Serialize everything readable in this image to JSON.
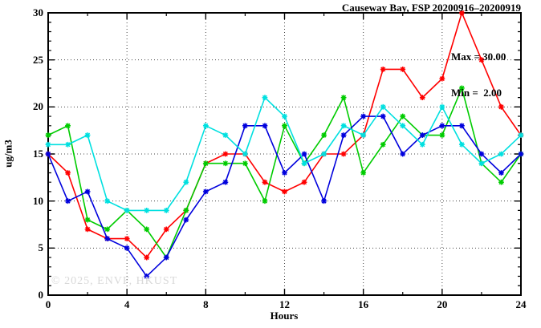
{
  "header": {
    "title": "Causeway Bay, FSP 20200916–20200919"
  },
  "annotation": {
    "max_label": "Max = 30.00",
    "min_label": "Min =  2.00"
  },
  "watermark": "© 2025, ENVF, HKUST",
  "axes": {
    "x_label": "Hours",
    "y_label": "ug/m3"
  },
  "chart_data": {
    "type": "line",
    "title": "Causeway Bay, FSP 20200916–20200919",
    "xlabel": "Hours",
    "ylabel": "ug/m3",
    "xlim": [
      0,
      24
    ],
    "ylim": [
      0,
      30
    ],
    "x_major_ticks": [
      0,
      4,
      8,
      12,
      16,
      20,
      24
    ],
    "x_minor_step": 2,
    "y_major_ticks": [
      0,
      5,
      10,
      15,
      20,
      25,
      30
    ],
    "y_minor_step": 1,
    "grid": "dotted-major",
    "legend_position": "none",
    "marker": "asterisk",
    "max_value": 30.0,
    "min_value": 2.0,
    "x": [
      0,
      1,
      2,
      3,
      4,
      5,
      6,
      7,
      8,
      9,
      10,
      11,
      12,
      13,
      14,
      15,
      16,
      17,
      18,
      19,
      20,
      21,
      22,
      23,
      24
    ],
    "series": [
      {
        "name": "series-red",
        "color": "#ff0000",
        "values": [
          15,
          13,
          7,
          6,
          6,
          4,
          7,
          9,
          14,
          15,
          15,
          12,
          11,
          12,
          15,
          15,
          17,
          24,
          24,
          21,
          23,
          30,
          25,
          20,
          17
        ]
      },
      {
        "name": "series-green",
        "color": "#00cc00",
        "values": [
          17,
          18,
          8,
          7,
          9,
          7,
          4,
          9,
          14,
          14,
          14,
          10,
          18,
          14,
          17,
          21,
          13,
          16,
          19,
          17,
          17,
          22,
          14,
          12,
          15
        ]
      },
      {
        "name": "series-blue",
        "color": "#0000dd",
        "values": [
          15,
          10,
          11,
          6,
          5,
          2,
          4,
          8,
          11,
          12,
          18,
          18,
          13,
          15,
          10,
          17,
          19,
          19,
          15,
          17,
          18,
          18,
          15,
          13,
          15
        ]
      },
      {
        "name": "series-cyan",
        "color": "#00e0e0",
        "values": [
          16,
          16,
          17,
          10,
          9,
          9,
          9,
          12,
          18,
          17,
          15,
          21,
          19,
          14,
          15,
          18,
          17,
          20,
          18,
          16,
          20,
          16,
          14,
          15,
          17
        ]
      }
    ]
  },
  "colors": {
    "grid": "#444444",
    "border": "#000000",
    "watermark": "#d9d9d9"
  }
}
